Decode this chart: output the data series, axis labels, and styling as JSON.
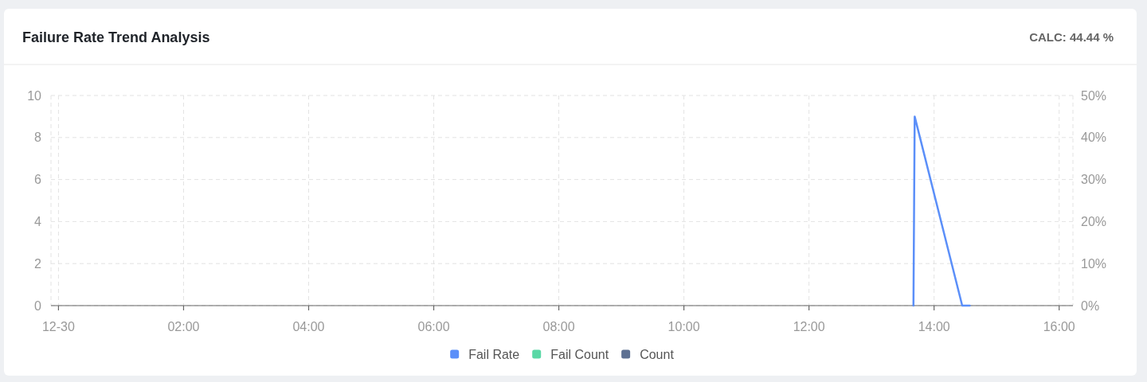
{
  "chart_data": {
    "type": "line",
    "title": "Failure Rate Trend Analysis",
    "annotations": [
      "CALC: 44.44 %"
    ],
    "x": [
      13.67,
      13.69,
      14.45,
      14.57
    ],
    "xlim": [
      -0.12,
      16.22
    ],
    "xticks": [
      {
        "value": 0,
        "label": "12-30"
      },
      {
        "value": 2,
        "label": "02:00"
      },
      {
        "value": 4,
        "label": "04:00"
      },
      {
        "value": 6,
        "label": "06:00"
      },
      {
        "value": 8,
        "label": "08:00"
      },
      {
        "value": 10,
        "label": "10:00"
      },
      {
        "value": 12,
        "label": "12:00"
      },
      {
        "value": 14,
        "label": "14:00"
      },
      {
        "value": 16,
        "label": "16:00"
      }
    ],
    "ylim": [
      0,
      10
    ],
    "yticks": [
      0,
      2,
      4,
      6,
      8,
      10
    ],
    "y2lim": [
      0,
      50
    ],
    "y2ticks": [
      {
        "value": 0,
        "label": "0%"
      },
      {
        "value": 10,
        "label": "10%"
      },
      {
        "value": 20,
        "label": "20%"
      },
      {
        "value": 30,
        "label": "30%"
      },
      {
        "value": 40,
        "label": "40%"
      },
      {
        "value": 50,
        "label": "50%"
      }
    ],
    "series": [
      {
        "name": "Fail Rate",
        "color": "#5b8ff9",
        "axis": "y2",
        "values": [
          0,
          45,
          0,
          0
        ]
      },
      {
        "name": "Fail Count",
        "color": "#5ad8a6",
        "values": [
          null,
          null,
          null,
          null
        ]
      },
      {
        "name": "Count",
        "color": "#5d7092",
        "values": [
          null,
          null,
          null,
          null
        ]
      }
    ],
    "grid": true,
    "legend": "bottom",
    "marker": "none",
    "line_style": "solid"
  }
}
